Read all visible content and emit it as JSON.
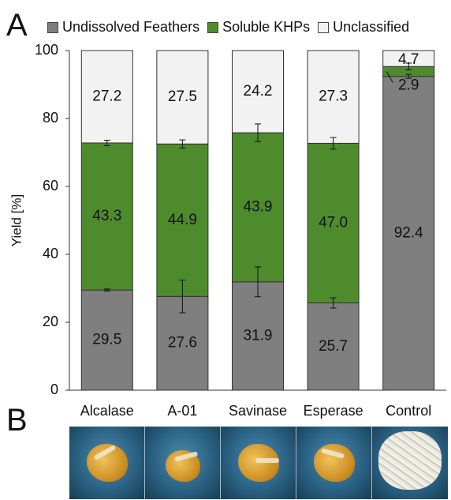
{
  "panels": {
    "a": "A",
    "b": "B"
  },
  "colors": {
    "undissolved": "#7f7f7f",
    "soluble": "#4e8b2c",
    "unclassified": "#f2f2f2"
  },
  "chart_data": {
    "type": "bar",
    "stacked": true,
    "title": "",
    "xlabel": "",
    "ylabel": "Yield [%]",
    "ylim": [
      0,
      100
    ],
    "yticks": [
      0,
      20,
      40,
      60,
      80,
      100
    ],
    "grid": false,
    "legend_position": "top",
    "categories": [
      "Alcalase",
      "A-01",
      "Savinase",
      "Esperase",
      "Control"
    ],
    "series": [
      {
        "name": "Undissolved Feathers",
        "values": [
          29.5,
          27.6,
          31.9,
          25.7,
          92.4
        ],
        "errors": [
          0.3,
          4.8,
          4.4,
          1.5,
          0.6
        ]
      },
      {
        "name": "Soluble KHPs",
        "values": [
          43.3,
          44.9,
          43.9,
          47.0,
          2.9
        ],
        "errors": [
          0.8,
          1.2,
          2.6,
          1.7,
          1.0
        ]
      },
      {
        "name": "Unclassified",
        "values": [
          27.2,
          27.5,
          24.2,
          27.3,
          4.7
        ]
      }
    ],
    "data_labels": [
      [
        "29.5",
        "43.3",
        "27.2"
      ],
      [
        "27.6",
        "44.9",
        "27.5"
      ],
      [
        "31.9",
        "43.9",
        "24.2"
      ],
      [
        "25.7",
        "47.0",
        "27.3"
      ],
      [
        "92.4",
        "2.9",
        "4.7"
      ]
    ]
  },
  "photos": [
    {
      "label": "Alcalase",
      "kind": "blob"
    },
    {
      "label": "A-01",
      "kind": "blob-small"
    },
    {
      "label": "Savinase",
      "kind": "blob"
    },
    {
      "label": "Esperase",
      "kind": "blob"
    },
    {
      "label": "Control",
      "kind": "fluff"
    }
  ]
}
